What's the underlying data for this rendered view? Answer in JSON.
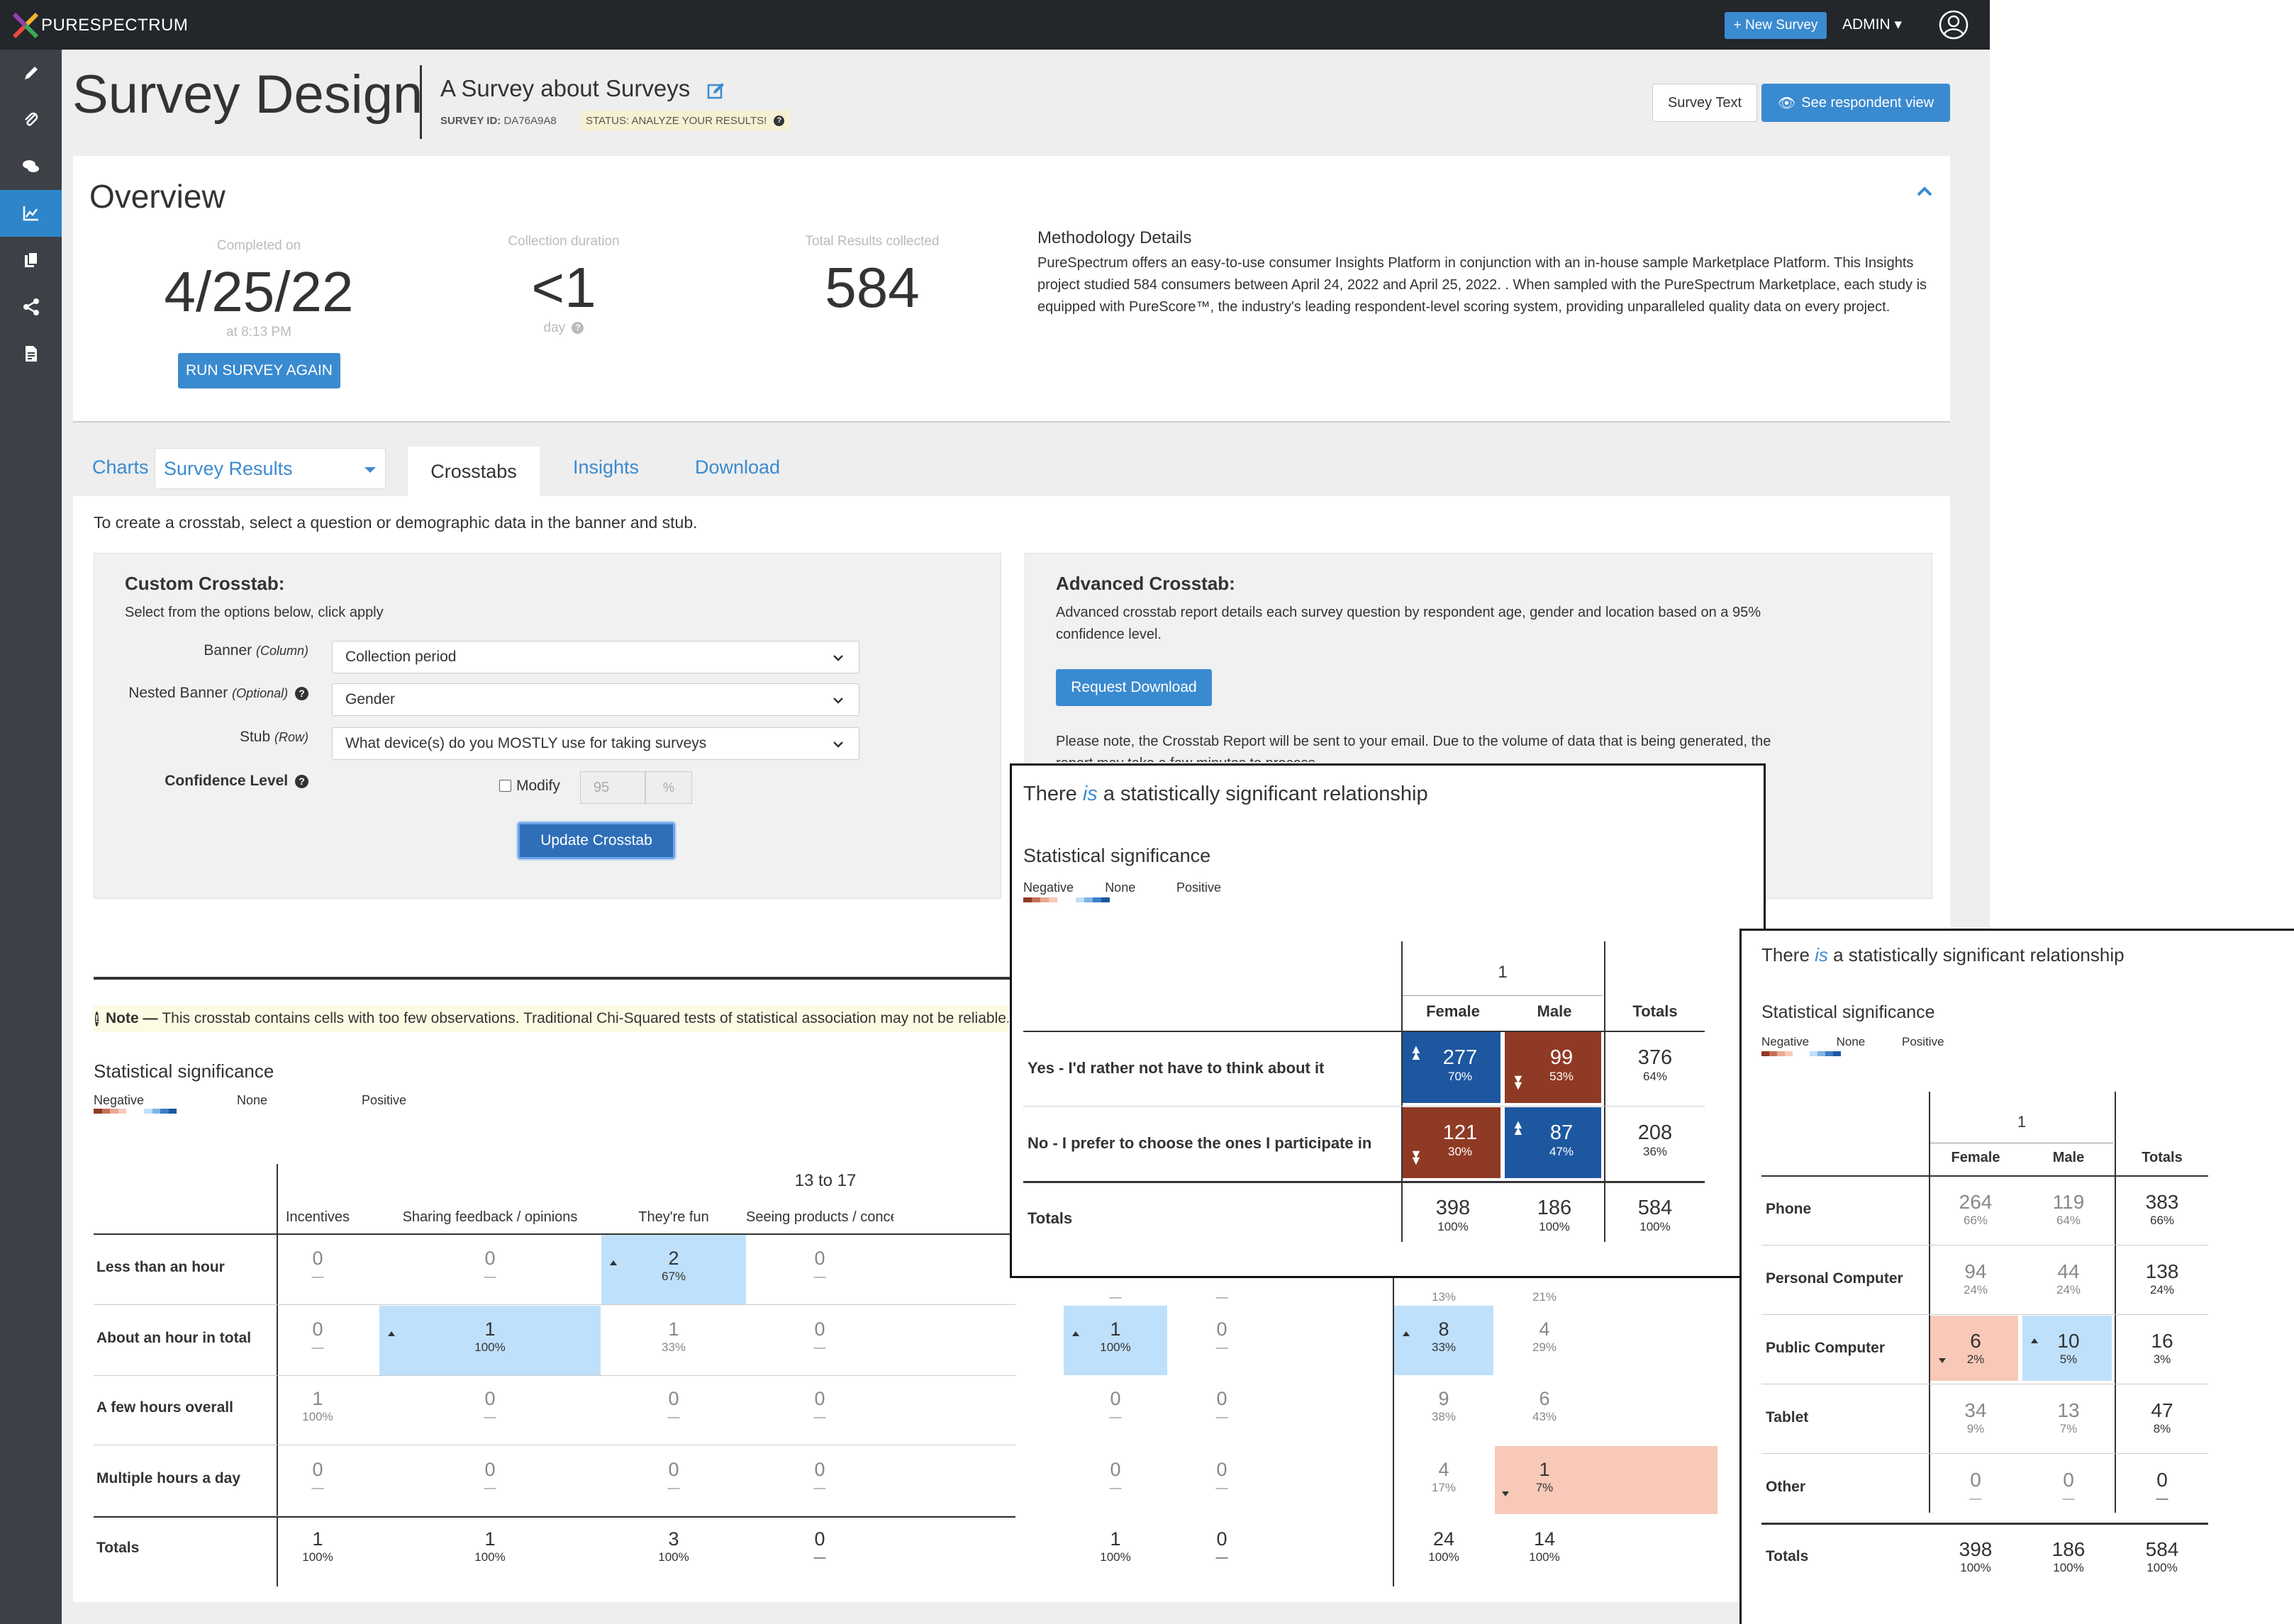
{
  "app": {
    "brand": "PURESPECTRUM",
    "new_survey": "New Survey",
    "admin": "ADMIN"
  },
  "sidebar": [
    "pencil-icon",
    "paperclip-icon",
    "comments-icon",
    "chart-icon",
    "copy-icon",
    "share-icon",
    "file-icon"
  ],
  "header": {
    "title": "Survey Design",
    "survey_name": "A Survey about Surveys",
    "survey_id_label": "SURVEY ID:",
    "survey_id": "DA76A9A8",
    "status": "STATUS: ANALYZE YOUR RESULTS!",
    "survey_text_btn": "Survey Text",
    "respondent_btn": "See respondent view"
  },
  "overview": {
    "title": "Overview",
    "completed_label": "Completed on",
    "completed_value": "4/25/22",
    "completed_time": "at 8:13 PM",
    "run_again": "RUN SURVEY AGAIN",
    "duration_label": "Collection duration",
    "duration_value": "<1",
    "duration_unit": "day",
    "total_label": "Total Results collected",
    "total_value": "584",
    "meth_title": "Methodology Details",
    "meth_body": "PureSpectrum offers an easy-to-use consumer Insights Platform in conjunction with an in-house sample Marketplace Platform. This Insights project studied 584 consumers between April 24, 2022 and April 25, 2022. . When sampled with the PureSpectrum Marketplace, each study is equipped with PureScore™, the industry's leading respondent-level scoring system, providing unparalleled quality data on every project."
  },
  "tabs": {
    "charts": "Charts",
    "survey_results": "Survey Results",
    "crosstabs": "Crosstabs",
    "insights": "Insights",
    "download": "Download"
  },
  "crosstab": {
    "instruction": "To create a crosstab, select a question or demographic data in the banner and stub.",
    "custom_title": "Custom Crosstab:",
    "custom_sub": "Select from the options below, click apply",
    "banner_label": "Banner",
    "banner_hint": "(Column)",
    "banner_value": "Collection period",
    "nested_label": "Nested Banner",
    "nested_hint": "(Optional)",
    "nested_value": "Gender",
    "stub_label": "Stub",
    "stub_hint": "(Row)",
    "stub_value": "What device(s) do you MOSTLY use for taking surveys",
    "conf_label": "Confidence Level",
    "modify": "Modify",
    "conf_value": "95",
    "conf_unit": "%",
    "update_btn": "Update Crosstab",
    "adv_title": "Advanced Crosstab:",
    "adv_body": "Advanced crosstab report details each survey question by respondent age, gender and location based on a 95% confidence level.",
    "request_btn": "Request Download",
    "adv_note": "Please note, the Crosstab Report will be sent to your email. Due to the volume of data that is being generated, the report may take a few minutes to process."
  },
  "note": {
    "label": "Note —",
    "text": "This crosstab contains cells with too few observations. Traditional Chi-Squared tests of statistical association may not be reliable."
  },
  "sig": {
    "title": "Statistical significance",
    "negative": "Negative",
    "none": "None",
    "positive": "Positive",
    "neg_colors": [
      "#8f3a24",
      "#c4705a",
      "#e8a893",
      "#f8c9b8"
    ],
    "pos_colors": [
      "#bfe0fb",
      "#7fb4e4",
      "#3c7ec3",
      "#1d57a0"
    ]
  },
  "main_table": {
    "group_header": "13 to 17",
    "columns": [
      "Incentives",
      "Sharing feedback / opinions",
      "They&#39;re fun",
      "Seeing products / concepts before others"
    ],
    "rows": [
      {
        "label": "Less than an hour",
        "cells": [
          [
            "0",
            "—"
          ],
          [
            "0",
            "—"
          ],
          [
            "2",
            "67%"
          ],
          [
            "0",
            "—"
          ]
        ],
        "right": [
          [
            "—",
            ""
          ],
          [
            "—",
            ""
          ],
          [
            "13%",
            ""
          ],
          [
            "21%",
            ""
          ]
        ]
      },
      {
        "label": "About an hour in total",
        "cells": [
          [
            "0",
            "—"
          ],
          [
            "1",
            "100%"
          ],
          [
            "1",
            "33%"
          ],
          [
            "0",
            "—"
          ]
        ],
        "right": [
          [
            "1",
            "100%"
          ],
          [
            "0",
            "—"
          ],
          [
            "8",
            "33%"
          ],
          [
            "4",
            "29%"
          ]
        ]
      },
      {
        "label": "A few hours overall",
        "cells": [
          [
            "1",
            "100%"
          ],
          [
            "0",
            "—"
          ],
          [
            "0",
            "—"
          ],
          [
            "0",
            "—"
          ]
        ],
        "right": [
          [
            "0",
            "—"
          ],
          [
            "0",
            "—"
          ],
          [
            "9",
            "38%"
          ],
          [
            "6",
            "43%"
          ]
        ]
      },
      {
        "label": "Multiple hours a day",
        "cells": [
          [
            "0",
            "—"
          ],
          [
            "0",
            "—"
          ],
          [
            "0",
            "—"
          ],
          [
            "0",
            "—"
          ]
        ],
        "right": [
          [
            "0",
            "—"
          ],
          [
            "0",
            "—"
          ],
          [
            "4",
            "17%"
          ],
          [
            "1",
            "7%"
          ]
        ]
      },
      {
        "label": "Totals",
        "cells": [
          [
            "1",
            "100%"
          ],
          [
            "1",
            "100%"
          ],
          [
            "3",
            "100%"
          ],
          [
            "0",
            "—"
          ]
        ],
        "right": [
          [
            "1",
            "100%"
          ],
          [
            "0",
            "—"
          ],
          [
            "24",
            "100%"
          ],
          [
            "14",
            "100%"
          ]
        ]
      }
    ]
  },
  "popup1": {
    "title_pre": "There ",
    "title_em": "is",
    "title_post": " a statistically significant relationship",
    "group": "1",
    "cols": [
      "Female",
      "Male",
      "Totals"
    ],
    "rows": [
      {
        "label": "Yes - I&#39;d rather not have to think about it",
        "cells": [
          [
            "277",
            "70%"
          ],
          [
            "99",
            "53%"
          ],
          [
            "376",
            "64%"
          ]
        ]
      },
      {
        "label": "No - I prefer to choose the ones I participate in",
        "cells": [
          [
            "121",
            "30%"
          ],
          [
            "87",
            "47%"
          ],
          [
            "208",
            "36%"
          ]
        ]
      },
      {
        "label": "Totals",
        "cells": [
          [
            "398",
            "100%"
          ],
          [
            "186",
            "100%"
          ],
          [
            "584",
            "100%"
          ]
        ]
      }
    ]
  },
  "popup2": {
    "title_pre": "There ",
    "title_em": "is",
    "title_post": " a statistically significant relationship",
    "group": "1",
    "cols": [
      "Female",
      "Male",
      "Totals"
    ],
    "rows": [
      {
        "label": "Phone",
        "cells": [
          [
            "264",
            "66%"
          ],
          [
            "119",
            "64%"
          ],
          [
            "383",
            "66%"
          ]
        ]
      },
      {
        "label": "Personal Computer",
        "cells": [
          [
            "94",
            "24%"
          ],
          [
            "44",
            "24%"
          ],
          [
            "138",
            "24%"
          ]
        ]
      },
      {
        "label": "Public Computer",
        "cells": [
          [
            "6",
            "2%"
          ],
          [
            "10",
            "5%"
          ],
          [
            "16",
            "3%"
          ]
        ]
      },
      {
        "label": "Tablet",
        "cells": [
          [
            "34",
            "9%"
          ],
          [
            "13",
            "7%"
          ],
          [
            "47",
            "8%"
          ]
        ]
      },
      {
        "label": "Other",
        "cells": [
          [
            "0",
            "—"
          ],
          [
            "0",
            "—"
          ],
          [
            "0",
            "—"
          ]
        ]
      },
      {
        "label": "Totals",
        "cells": [
          [
            "398",
            "100%"
          ],
          [
            "186",
            "100%"
          ],
          [
            "584",
            "100%"
          ]
        ]
      }
    ]
  }
}
